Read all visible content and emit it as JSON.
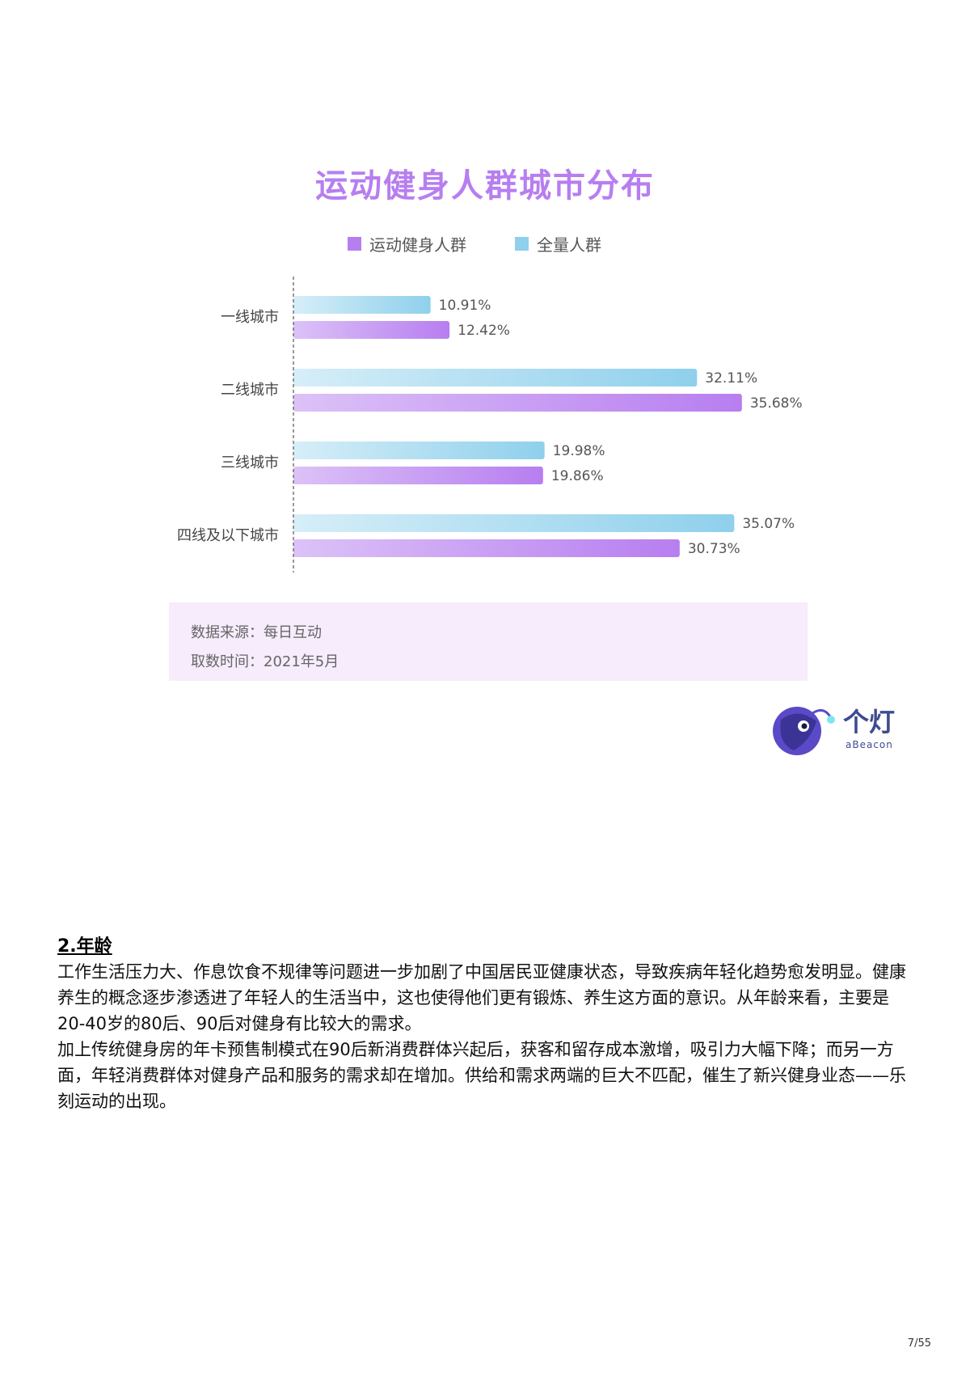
{
  "chart_data": {
    "type": "bar",
    "orientation": "horizontal",
    "title": "运动健身人群城市分布",
    "categories": [
      "一线城市",
      "二线城市",
      "三线城市",
      "四线及以下城市"
    ],
    "series": [
      {
        "name": "全量人群",
        "values": [
          10.91,
          32.11,
          19.98,
          35.07
        ],
        "labels": [
          "10.91%",
          "32.11%",
          "19.98%",
          "35.07%"
        ],
        "color": "#8fd0ec"
      },
      {
        "name": "运动健身人群",
        "values": [
          12.42,
          35.68,
          19.86,
          30.73
        ],
        "labels": [
          "12.42%",
          "35.68%",
          "19.86%",
          "30.73%"
        ],
        "color": "#b77ef0"
      }
    ],
    "legend": [
      {
        "name": "运动健身人群",
        "color": "#b77ef0"
      },
      {
        "name": "全量人群",
        "color": "#8fd0ec"
      }
    ],
    "legend_position": "top",
    "grid": false,
    "xlim": [
      0,
      40
    ]
  },
  "source": {
    "line1": "数据来源：每日互动",
    "line2": "取数时间：2021年5月"
  },
  "logo": {
    "name": "个灯",
    "sub": "aBeacon"
  },
  "section": {
    "heading": "2.年龄",
    "paragraph1": "工作生活压力大、作息饮食不规律等问题进一步加剧了中国居民亚健康状态，导致疾病年轻化趋势愈发明显。健康养生的概念逐步渗透进了年轻人的生活当中，这也使得他们更有锻炼、养生这方面的意识。从年龄来看，主要是20-40岁的80后、90后对健身有比较大的需求。",
    "paragraph2": "加上传统健身房的年卡预售制模式在90后新消费群体兴起后，获客和留存成本激增，吸引力大幅下降；而另一方面，年轻消费群体对健身产品和服务的需求却在增加。供给和需求两端的巨大不匹配，催生了新兴健身业态——乐刻运动的出现。"
  },
  "page": "7/55"
}
